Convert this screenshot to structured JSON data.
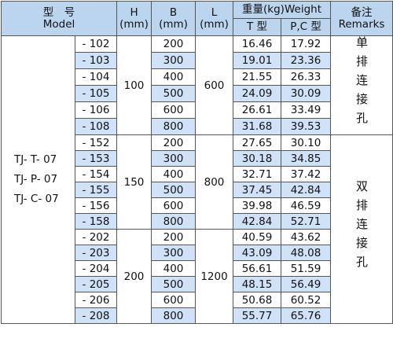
{
  "header": {
    "model_cn": "型　号",
    "model_en": "Model",
    "h": "H",
    "b": "B",
    "l": "L",
    "unit": "(mm)",
    "weight": "重量(kg)Weight",
    "t_type": "T 型",
    "pc_type": "P,C 型",
    "remarks_cn": "备注",
    "remarks_en": "Remarks"
  },
  "models": [
    "TJ- T- 07",
    "TJ- P- 07",
    "TJ- C- 07"
  ],
  "remarks": [
    "单排连接孔",
    "双排连接孔"
  ],
  "groups": [
    {
      "h": "100",
      "l": "600",
      "rows": [
        [
          "- 102",
          "200",
          "16.46",
          "17.92"
        ],
        [
          "- 103",
          "300",
          "19.01",
          "23.36"
        ],
        [
          "- 104",
          "400",
          "21.55",
          "26.33"
        ],
        [
          "- 105",
          "500",
          "24.09",
          "30.09"
        ],
        [
          "- 106",
          "600",
          "26.61",
          "33.49"
        ],
        [
          "- 108",
          "800",
          "31.68",
          "39.53"
        ]
      ]
    },
    {
      "h": "150",
      "l": "800",
      "rows": [
        [
          "- 152",
          "200",
          "27.65",
          "30.10"
        ],
        [
          "- 153",
          "300",
          "30.18",
          "34.85"
        ],
        [
          "- 154",
          "400",
          "32.71",
          "37.42"
        ],
        [
          "- 155",
          "500",
          "37.45",
          "42.84"
        ],
        [
          "- 156",
          "600",
          "39.98",
          "46.59"
        ],
        [
          "- 158",
          "800",
          "42.84",
          "52.71"
        ]
      ]
    },
    {
      "h": "200",
      "l": "1200",
      "rows": [
        [
          "- 202",
          "200",
          "40.59",
          "43.62"
        ],
        [
          "- 203",
          "300",
          "43.09",
          "48.08"
        ],
        [
          "- 204",
          "400",
          "56.61",
          "51.59"
        ],
        [
          "- 205",
          "500",
          "48.15",
          "56.49"
        ],
        [
          "- 206",
          "600",
          "50.68",
          "60.52"
        ],
        [
          "- 208",
          "800",
          "55.77",
          "65.76"
        ]
      ]
    }
  ]
}
